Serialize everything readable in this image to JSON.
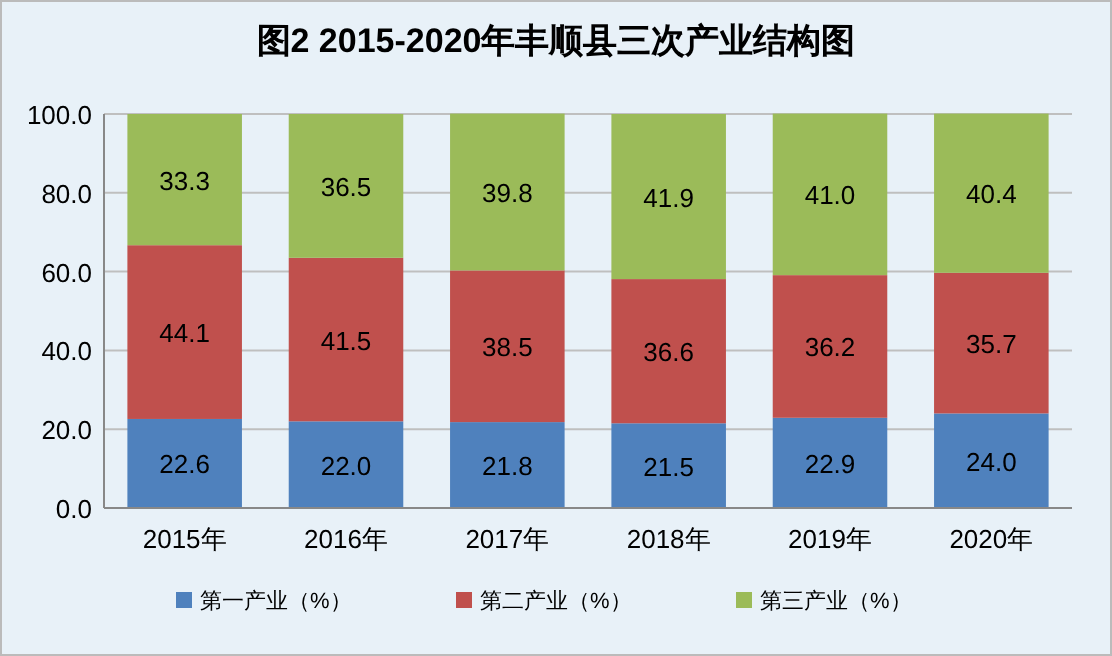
{
  "chart_data": {
    "type": "bar",
    "title": "图2  2015-2020年丰顺县三次产业结构图",
    "categories": [
      "2015年",
      "2016年",
      "2017年",
      "2018年",
      "2019年",
      "2020年"
    ],
    "stacked": true,
    "series": [
      {
        "name": "第一产业（%）",
        "color": "#4f81bd",
        "values": [
          22.6,
          22.0,
          21.8,
          21.5,
          22.9,
          24.0
        ],
        "value_labels": [
          "22.6",
          "22.0",
          "21.8",
          "21.5",
          "22.9",
          "24.0"
        ]
      },
      {
        "name": "第二产业（%）",
        "color": "#c0504d",
        "values": [
          44.1,
          41.5,
          38.5,
          36.6,
          36.2,
          35.7
        ],
        "value_labels": [
          "44.1",
          "41.5",
          "38.5",
          "36.6",
          "36.2",
          "35.7"
        ]
      },
      {
        "name": "第三产业（%）",
        "color": "#9bbb59",
        "values": [
          33.3,
          36.5,
          39.8,
          41.9,
          41.0,
          40.4
        ],
        "value_labels": [
          "33.3",
          "36.5",
          "39.8",
          "41.9",
          "41.0",
          "40.4"
        ]
      }
    ],
    "ylim": [
      0,
      100
    ],
    "yticks": [
      {
        "value": 0,
        "label": "0.0"
      },
      {
        "value": 20,
        "label": "20.0"
      },
      {
        "value": 40,
        "label": "40.0"
      },
      {
        "value": 60,
        "label": "60.0"
      },
      {
        "value": 80,
        "label": "80.0"
      },
      {
        "value": 100,
        "label": "100.0"
      }
    ],
    "grid": "y",
    "legend": "bottom"
  }
}
